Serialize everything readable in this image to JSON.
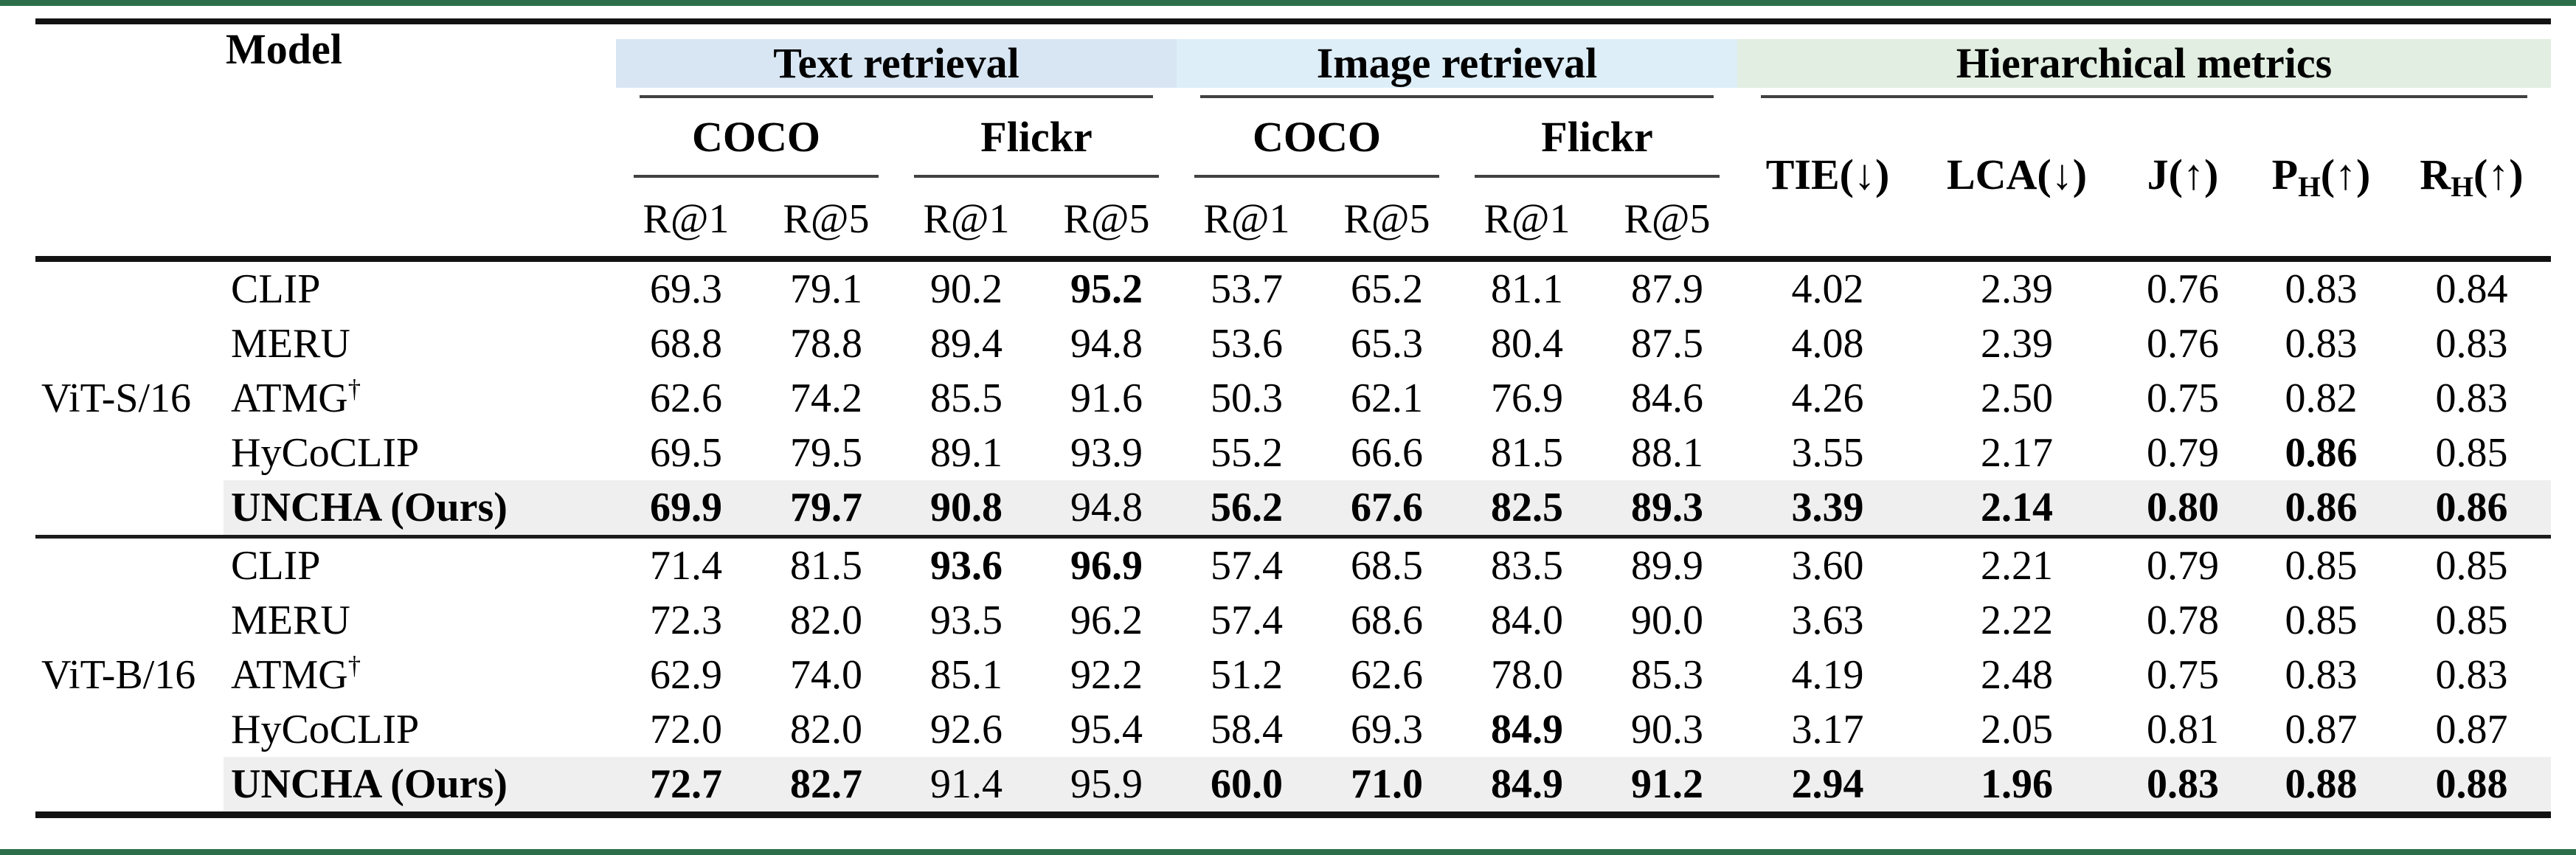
{
  "colors": {
    "top_bottom_bar": "#2c6e49",
    "text_retrieval_band": "#d8e6f3",
    "image_retrieval_band": "#ddeef8",
    "hierarchical_band": "#e2eee2",
    "ours_row_highlight": "#efefef"
  },
  "header": {
    "model_col": "Model",
    "groups": [
      {
        "label": "Text retrieval",
        "datasets": [
          "COCO",
          "Flickr"
        ]
      },
      {
        "label": "Image retrieval",
        "datasets": [
          "COCO",
          "Flickr"
        ]
      }
    ],
    "subcols": [
      "R@1",
      "R@5"
    ],
    "hier": {
      "label": "Hierarchical metrics",
      "metrics": [
        {
          "base": "TIE",
          "sub": "",
          "paren": "(↓)"
        },
        {
          "base": "LCA",
          "sub": "",
          "paren": "(↓)"
        },
        {
          "base": "J",
          "sub": "",
          "paren": "(↑)"
        },
        {
          "base": "P",
          "sub": "H",
          "paren": "(↑)"
        },
        {
          "base": "R",
          "sub": "H",
          "paren": "(↑)"
        }
      ]
    }
  },
  "chart_data": {
    "type": "table",
    "title": "",
    "column_groups": [
      "Text retrieval COCO R@1",
      "Text retrieval COCO R@5",
      "Text retrieval Flickr R@1",
      "Text retrieval Flickr R@5",
      "Image retrieval COCO R@1",
      "Image retrieval COCO R@5",
      "Image retrieval Flickr R@1",
      "Image retrieval Flickr R@5",
      "TIE(down)",
      "LCA(down)",
      "J(up)",
      "PH(up)",
      "RH(up)"
    ]
  },
  "sections": [
    {
      "backbone": "ViT-S/16",
      "rows": [
        {
          "model": "CLIP",
          "sup": "",
          "model_bold": false,
          "highlight": false,
          "values": [
            "69.3",
            "79.1",
            "90.2",
            "95.2",
            "53.7",
            "65.2",
            "81.1",
            "87.9",
            "4.02",
            "2.39",
            "0.76",
            "0.83",
            "0.84"
          ],
          "bold": [
            0,
            0,
            0,
            1,
            0,
            0,
            0,
            0,
            0,
            0,
            0,
            0,
            0
          ]
        },
        {
          "model": "MERU",
          "sup": "",
          "model_bold": false,
          "highlight": false,
          "values": [
            "68.8",
            "78.8",
            "89.4",
            "94.8",
            "53.6",
            "65.3",
            "80.4",
            "87.5",
            "4.08",
            "2.39",
            "0.76",
            "0.83",
            "0.83"
          ],
          "bold": [
            0,
            0,
            0,
            0,
            0,
            0,
            0,
            0,
            0,
            0,
            0,
            0,
            0
          ]
        },
        {
          "model": "ATMG",
          "sup": "†",
          "model_bold": false,
          "highlight": false,
          "values": [
            "62.6",
            "74.2",
            "85.5",
            "91.6",
            "50.3",
            "62.1",
            "76.9",
            "84.6",
            "4.26",
            "2.50",
            "0.75",
            "0.82",
            "0.83"
          ],
          "bold": [
            0,
            0,
            0,
            0,
            0,
            0,
            0,
            0,
            0,
            0,
            0,
            0,
            0
          ]
        },
        {
          "model": "HyCoCLIP",
          "sup": "",
          "model_bold": false,
          "highlight": false,
          "values": [
            "69.5",
            "79.5",
            "89.1",
            "93.9",
            "55.2",
            "66.6",
            "81.5",
            "88.1",
            "3.55",
            "2.17",
            "0.79",
            "0.86",
            "0.85"
          ],
          "bold": [
            0,
            0,
            0,
            0,
            0,
            0,
            0,
            0,
            0,
            0,
            0,
            1,
            0
          ]
        },
        {
          "model": "UNCHA (Ours)",
          "sup": "",
          "model_bold": true,
          "highlight": true,
          "values": [
            "69.9",
            "79.7",
            "90.8",
            "94.8",
            "56.2",
            "67.6",
            "82.5",
            "89.3",
            "3.39",
            "2.14",
            "0.80",
            "0.86",
            "0.86"
          ],
          "bold": [
            1,
            1,
            1,
            0,
            1,
            1,
            1,
            1,
            1,
            1,
            1,
            1,
            1
          ]
        }
      ]
    },
    {
      "backbone": "ViT-B/16",
      "rows": [
        {
          "model": "CLIP",
          "sup": "",
          "model_bold": false,
          "highlight": false,
          "values": [
            "71.4",
            "81.5",
            "93.6",
            "96.9",
            "57.4",
            "68.5",
            "83.5",
            "89.9",
            "3.60",
            "2.21",
            "0.79",
            "0.85",
            "0.85"
          ],
          "bold": [
            0,
            0,
            1,
            1,
            0,
            0,
            0,
            0,
            0,
            0,
            0,
            0,
            0
          ]
        },
        {
          "model": "MERU",
          "sup": "",
          "model_bold": false,
          "highlight": false,
          "values": [
            "72.3",
            "82.0",
            "93.5",
            "96.2",
            "57.4",
            "68.6",
            "84.0",
            "90.0",
            "3.63",
            "2.22",
            "0.78",
            "0.85",
            "0.85"
          ],
          "bold": [
            0,
            0,
            0,
            0,
            0,
            0,
            0,
            0,
            0,
            0,
            0,
            0,
            0
          ]
        },
        {
          "model": "ATMG",
          "sup": "†",
          "model_bold": false,
          "highlight": false,
          "values": [
            "62.9",
            "74.0",
            "85.1",
            "92.2",
            "51.2",
            "62.6",
            "78.0",
            "85.3",
            "4.19",
            "2.48",
            "0.75",
            "0.83",
            "0.83"
          ],
          "bold": [
            0,
            0,
            0,
            0,
            0,
            0,
            0,
            0,
            0,
            0,
            0,
            0,
            0
          ]
        },
        {
          "model": "HyCoCLIP",
          "sup": "",
          "model_bold": false,
          "highlight": false,
          "values": [
            "72.0",
            "82.0",
            "92.6",
            "95.4",
            "58.4",
            "69.3",
            "84.9",
            "90.3",
            "3.17",
            "2.05",
            "0.81",
            "0.87",
            "0.87"
          ],
          "bold": [
            0,
            0,
            0,
            0,
            0,
            0,
            1,
            0,
            0,
            0,
            0,
            0,
            0
          ]
        },
        {
          "model": "UNCHA (Ours)",
          "sup": "",
          "model_bold": true,
          "highlight": true,
          "values": [
            "72.7",
            "82.7",
            "91.4",
            "95.9",
            "60.0",
            "71.0",
            "84.9",
            "91.2",
            "2.94",
            "1.96",
            "0.83",
            "0.88",
            "0.88"
          ],
          "bold": [
            1,
            1,
            0,
            0,
            1,
            1,
            1,
            1,
            1,
            1,
            1,
            1,
            1
          ]
        }
      ]
    }
  ]
}
